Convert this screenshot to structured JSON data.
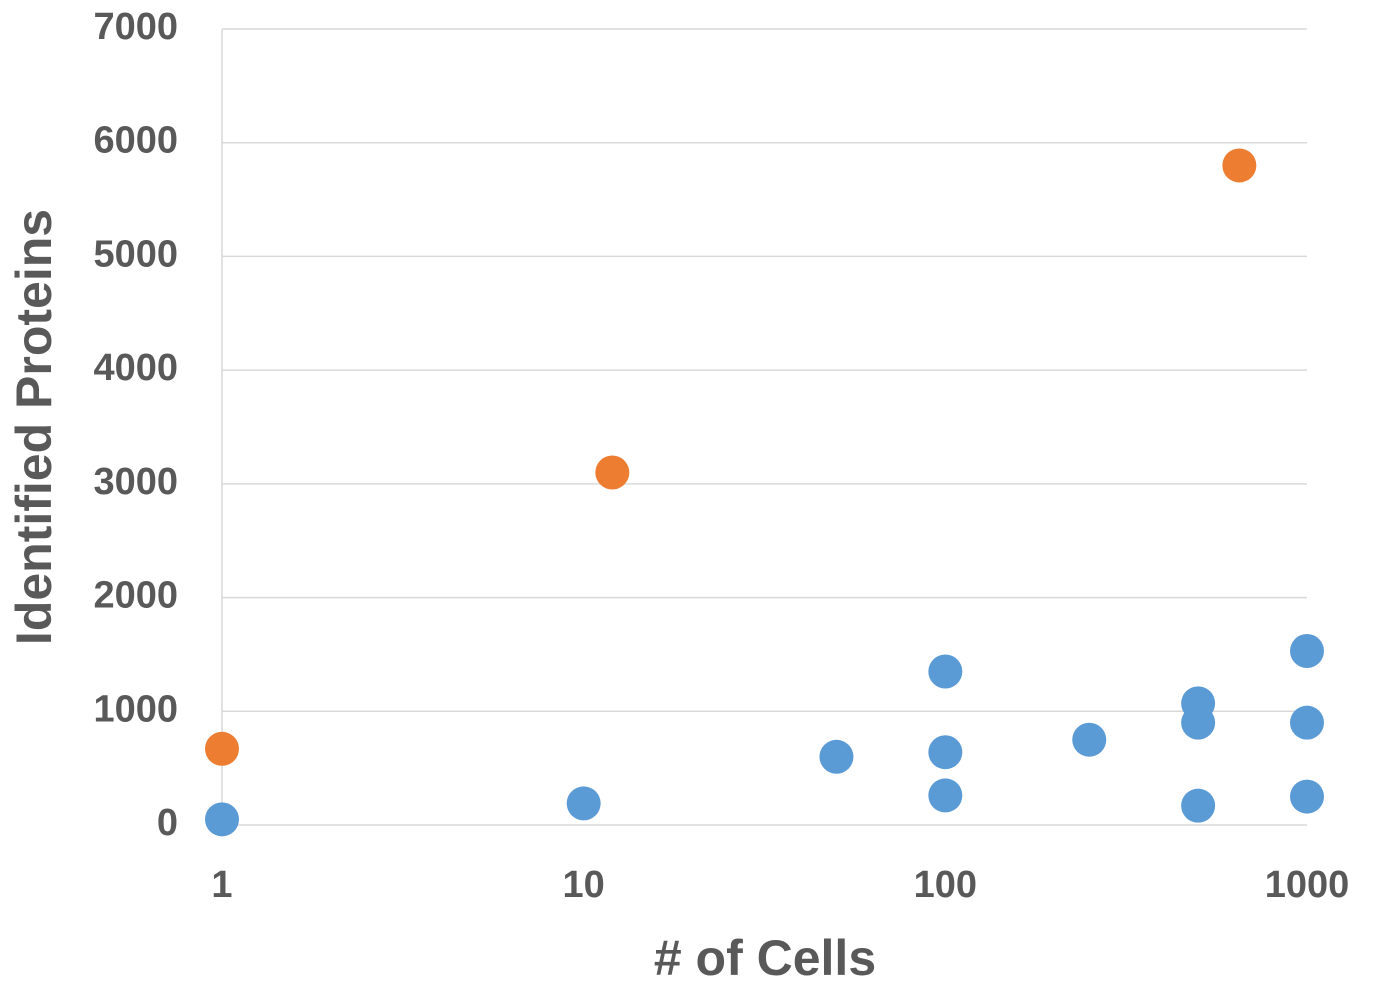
{
  "chart_data": {
    "type": "scatter",
    "x_label": "# of Cells",
    "y_label": "Identified Proteins",
    "xlog": true,
    "grid": true,
    "xlim": [
      1,
      1000
    ],
    "xticks": [
      1,
      10,
      100,
      1000
    ],
    "ylim": [
      0,
      7000
    ],
    "yticks": [
      0,
      1000,
      2000,
      3000,
      4000,
      5000,
      6000,
      7000
    ],
    "series": [
      {
        "color": "#5b9bd5",
        "x": [
          1,
          10,
          50,
          100,
          100,
          100,
          250,
          500,
          500,
          500,
          1000,
          1000,
          1000
        ],
        "values": [
          50,
          190,
          600,
          1350,
          640,
          260,
          750,
          1070,
          900,
          170,
          1530,
          900,
          250
        ]
      },
      {
        "color": "#ed7d31",
        "x": [
          1,
          12,
          650
        ],
        "values": [
          670,
          3100,
          5800
        ]
      }
    ]
  }
}
